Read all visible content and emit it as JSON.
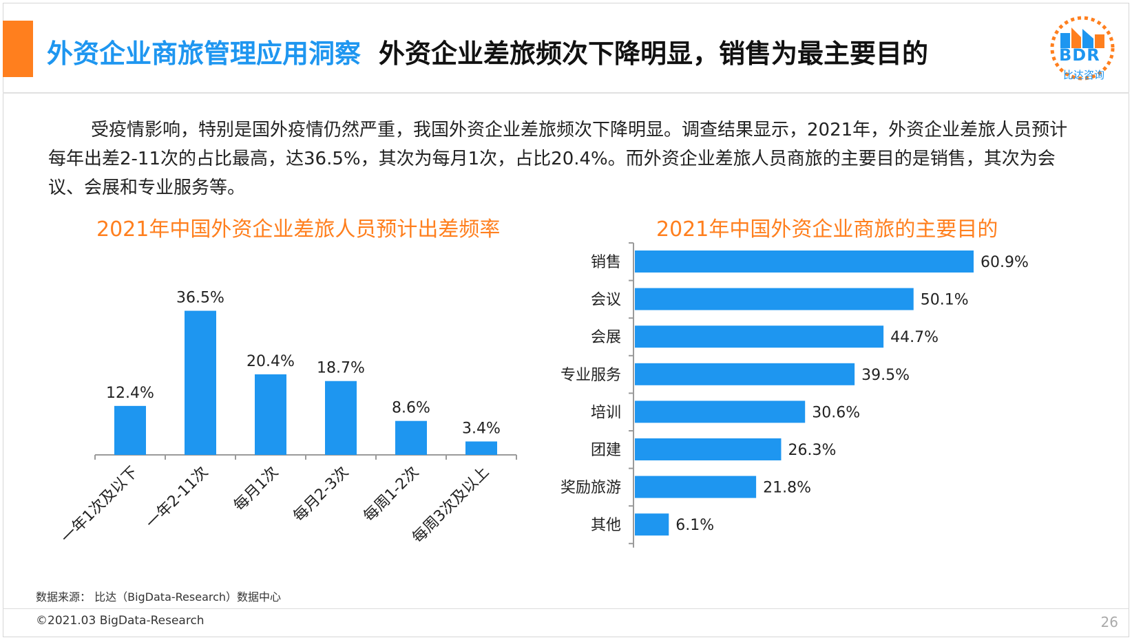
{
  "header": {
    "title_main": "外资企业商旅管理应用洞察",
    "title_sub": "外资企业差旅频次下降明显，销售为最主要目的"
  },
  "logo": {
    "text": "BDR",
    "sub": "比达咨询",
    "icon": "bdr-logo-icon"
  },
  "body_text": "受疫情影响，特别是国外疫情仍然严重，我国外资企业差旅频次下降明显。调查结果显示，2021年，外资企业差旅人员预计每年出差2-11次的占比最高，达36.5%，其次为每月1次，占比20.4%。而外资企业差旅人员商旅的主要目的是销售，其次为会议、会展和专业服务等。",
  "colors": {
    "accent": "#ff7f1e",
    "brand_blue": "#1e96f0",
    "bar_blue": "#1e96f0"
  },
  "chart_data": [
    {
      "type": "bar",
      "title": "2021年中国外资企业差旅人员预计出差频率",
      "categories": [
        "一年1次及以下",
        "一年2-11次",
        "每月1次",
        "每月2-3次",
        "每周1-2次",
        "每周3次及以上"
      ],
      "values": [
        12.4,
        36.5,
        20.4,
        18.7,
        8.6,
        3.4
      ],
      "labels": [
        "12.4%",
        "36.5%",
        "20.4%",
        "18.7%",
        "8.6%",
        "3.4%"
      ],
      "ylim": [
        0,
        40
      ],
      "grid": false
    },
    {
      "type": "bar",
      "orientation": "horizontal",
      "title": "2021年中国外资企业商旅的主要目的",
      "categories": [
        "销售",
        "会议",
        "会展",
        "专业服务",
        "培训",
        "团建",
        "奖励旅游",
        "其他"
      ],
      "values": [
        60.9,
        50.1,
        44.7,
        39.5,
        30.6,
        26.3,
        21.8,
        6.1
      ],
      "labels": [
        "60.9%",
        "50.1%",
        "44.7%",
        "39.5%",
        "30.6%",
        "26.3%",
        "21.8%",
        "6.1%"
      ],
      "xlim": [
        0,
        65
      ],
      "grid": false
    }
  ],
  "source": "数据来源： 比达（BigData-Research）数据中心",
  "footer": {
    "copyright": "©2021.03 BigData-Research",
    "page": "26"
  }
}
